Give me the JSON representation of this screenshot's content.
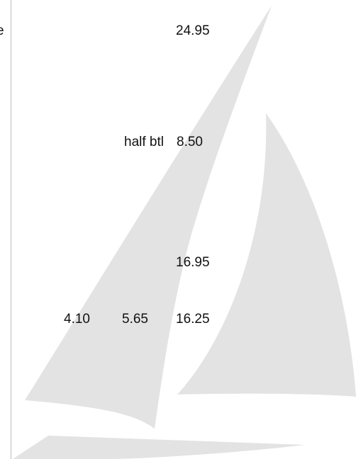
{
  "edge_text": "e",
  "rows": [
    {
      "price": "24.95"
    },
    {
      "label": "half btl",
      "price": "8.50"
    },
    {
      "price": "16.95"
    },
    {
      "prices": [
        "4.10",
        "5.65",
        "16.25"
      ]
    }
  ]
}
